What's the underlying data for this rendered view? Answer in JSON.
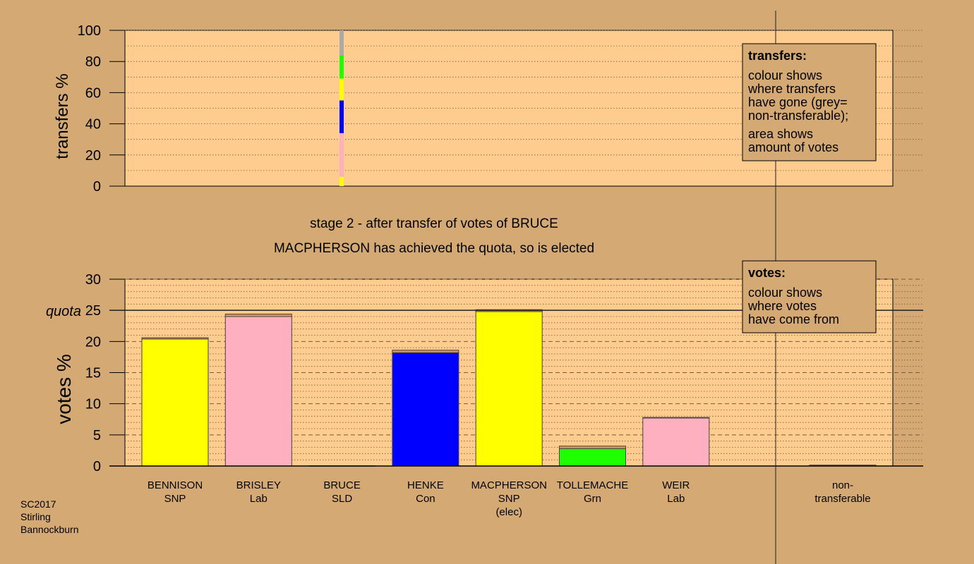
{
  "colors": {
    "background": "#d4a973",
    "plot_area": "#ffcc8f",
    "legend_box": "#d4a973",
    "yellow": "#ffff00",
    "pink": "#ffb0c0",
    "blue": "#0000ff",
    "green": "#1eff00",
    "grey": "#aaaaaa",
    "transfer_orange": "#e89050"
  },
  "chart_data": [
    {
      "type": "bar",
      "ylabel": "transfers %",
      "ylim": [
        0,
        100
      ],
      "yticks": [
        0,
        20,
        40,
        60,
        80,
        100
      ],
      "grid": true,
      "transfer_from": "BRUCE",
      "segments": [
        {
          "color": "#ffff00",
          "from": 0,
          "to": 6
        },
        {
          "color": "#ffb0c0",
          "from": 6,
          "to": 34
        },
        {
          "color": "#0000ff",
          "from": 34,
          "to": 55
        },
        {
          "color": "#ffff00",
          "from": 55,
          "to": 69
        },
        {
          "color": "#1eff00",
          "from": 69,
          "to": 84
        },
        {
          "color": "#aaaaaa",
          "from": 84,
          "to": 100
        }
      ],
      "legend": {
        "title": "transfers:",
        "lines": [
          "colour shows",
          "where transfers",
          "have gone (grey=",
          "non-transferable);"
        ],
        "lines2": [
          "area shows",
          "amount of votes"
        ],
        "placement": "top-right"
      }
    },
    {
      "type": "bar",
      "ylabel": "votes %",
      "ylim": [
        0,
        30
      ],
      "yticks": [
        0,
        5,
        10,
        15,
        20,
        25,
        30
      ],
      "quota": 25,
      "quota_label": "quota",
      "grid": true,
      "categories": [
        {
          "name": "BENNISON",
          "party": "SNP",
          "extra": "",
          "base": 20.4,
          "transfer": 0.2,
          "color": "#ffff00"
        },
        {
          "name": "BRISLEY",
          "party": "Lab",
          "extra": "",
          "base": 24.0,
          "transfer": 0.4,
          "color": "#ffb0c0"
        },
        {
          "name": "BRUCE",
          "party": "SLD",
          "extra": "",
          "base": 0.0,
          "transfer": 0.0,
          "color": "#ffff00"
        },
        {
          "name": "HENKE",
          "party": "Con",
          "extra": "",
          "base": 18.2,
          "transfer": 0.4,
          "color": "#0000ff"
        },
        {
          "name": "MACPHERSON",
          "party": "SNP",
          "extra": "(elec)",
          "base": 24.8,
          "transfer": 0.3,
          "color": "#ffff00"
        },
        {
          "name": "TOLLEMACHE",
          "party": "Grn",
          "extra": "",
          "base": 2.8,
          "transfer": 0.4,
          "color": "#1eff00"
        },
        {
          "name": "WEIR",
          "party": "Lab",
          "extra": "",
          "base": 7.7,
          "transfer": 0.1,
          "color": "#ffb0c0"
        }
      ],
      "non_transferable": {
        "line1": "non-",
        "line2": "transferable",
        "value": 0.15
      },
      "legend": {
        "title": "votes:",
        "lines": [
          "colour shows",
          "where votes",
          "have come from"
        ],
        "placement": "top-right"
      }
    }
  ],
  "stage_title": "stage 2 - after transfer of votes of BRUCE",
  "stage_subtitle": "MACPHERSON has achieved the quota, so is elected",
  "footer": {
    "line1": "SC2017",
    "line2": "Stirling",
    "line3": "Bannockburn"
  }
}
